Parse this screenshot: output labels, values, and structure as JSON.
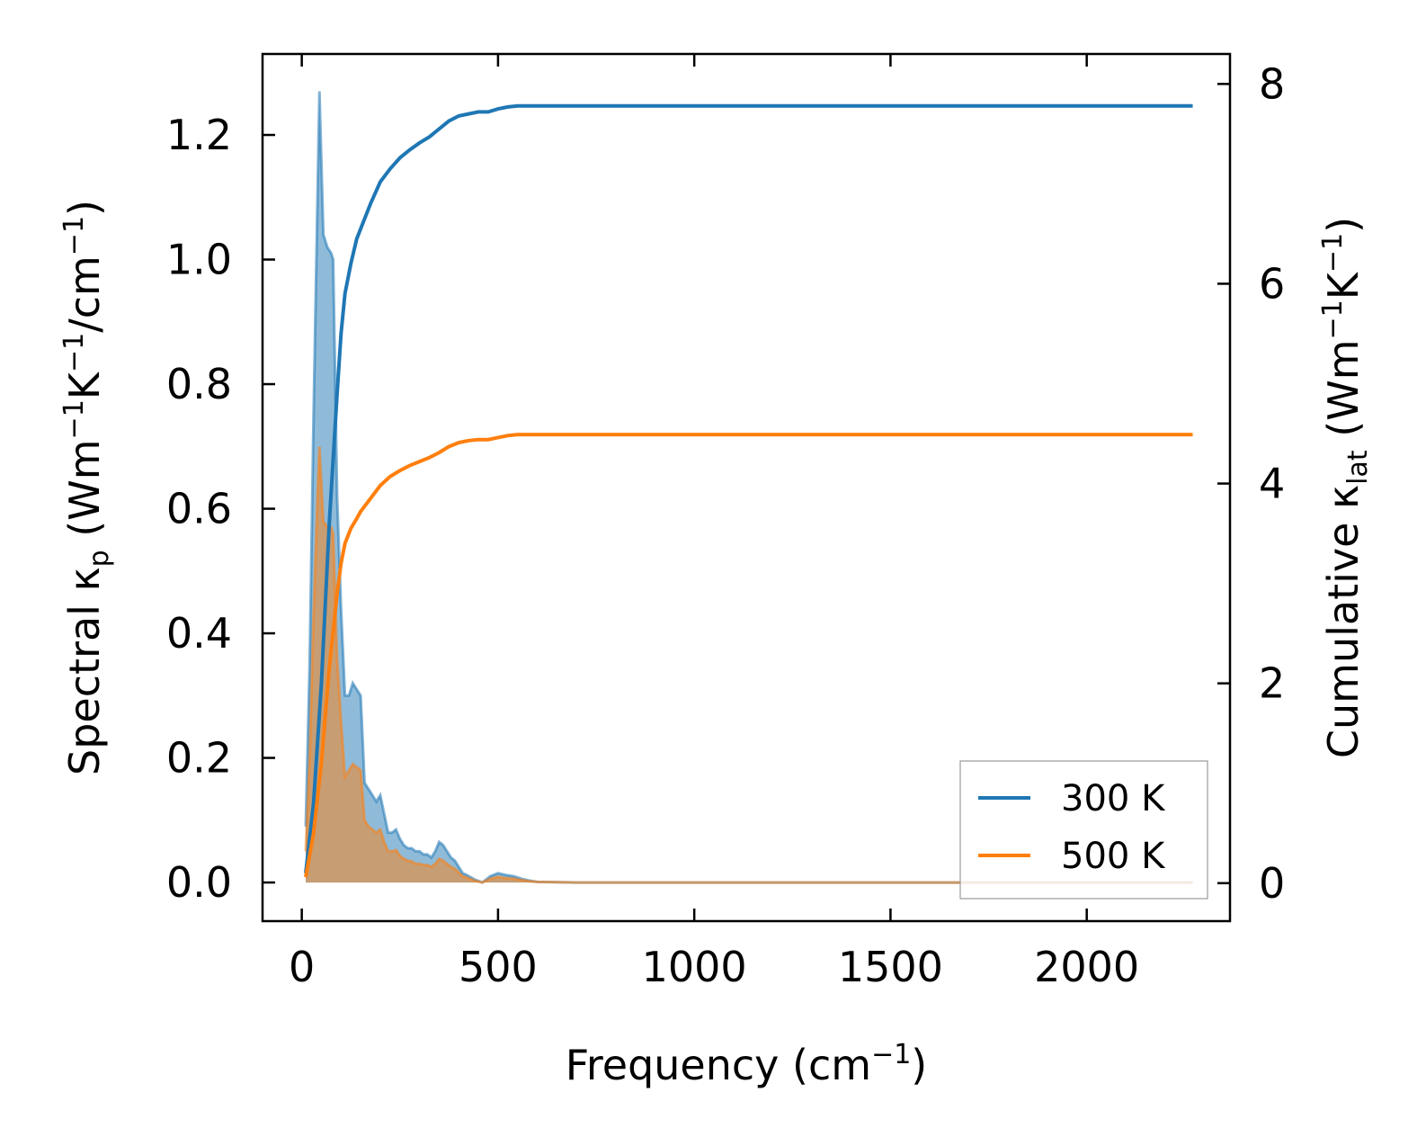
{
  "chart_data": {
    "type": "line",
    "x_label": "Frequency (cm",
    "x_label_sup": "−1",
    "x_label_end": ")",
    "y_left_label": {
      "parts": [
        "Spectral κ",
        "p",
        " (Wm",
        "−1",
        "K",
        "−1",
        "/cm",
        "−1",
        ")"
      ],
      "styles": [
        "n",
        "sub",
        "n",
        "sup",
        "n",
        "sup",
        "n",
        "sup",
        "n"
      ]
    },
    "y_right_label": {
      "parts": [
        "Cumulative κ",
        "lat",
        " (Wm",
        "−1",
        "K",
        "−1",
        ")"
      ],
      "styles": [
        "n",
        "sub",
        "n",
        "sup",
        "n",
        "sup",
        "n"
      ]
    },
    "x_range": [
      -100,
      2365
    ],
    "x_ticks": [
      0,
      500,
      1000,
      1500,
      2000
    ],
    "x_tick_labels": [
      "0",
      "500",
      "1000",
      "1500",
      "2000"
    ],
    "y_left_range": [
      -0.062,
      1.33
    ],
    "y_left_ticks": [
      0.0,
      0.2,
      0.4,
      0.6,
      0.8,
      1.0,
      1.2
    ],
    "y_left_tick_labels": [
      "0.0",
      "0.2",
      "0.4",
      "0.6",
      "0.8",
      "1.0",
      "1.2"
    ],
    "y_right_range": [
      -0.38,
      8.3
    ],
    "y_right_ticks": [
      0,
      2,
      4,
      6,
      8
    ],
    "y_right_tick_labels": [
      "0",
      "2",
      "4",
      "6",
      "8"
    ],
    "legend": {
      "position": "lower-right",
      "entries": [
        {
          "label": "300 K",
          "color": "#1f77b4"
        },
        {
          "label": "500 K",
          "color": "#ff7f0e"
        }
      ]
    },
    "series": [
      {
        "name": "300 K",
        "color": "#1f77b4",
        "spectral_x": [
          10,
          20,
          30,
          40,
          45,
          55,
          65,
          75,
          80,
          90,
          100,
          110,
          120,
          130,
          140,
          150,
          160,
          170,
          180,
          190,
          200,
          210,
          220,
          230,
          240,
          250,
          260,
          270,
          280,
          290,
          300,
          310,
          320,
          330,
          340,
          350,
          360,
          370,
          380,
          390,
          400,
          410,
          420,
          440,
          460,
          480,
          500,
          520,
          540,
          560,
          580,
          600,
          700,
          800,
          1000,
          1500,
          2000,
          2270
        ],
        "spectral_y": [
          0.09,
          0.35,
          0.75,
          1.1,
          1.27,
          1.04,
          1.02,
          1.01,
          1.0,
          0.62,
          0.44,
          0.3,
          0.3,
          0.32,
          0.31,
          0.3,
          0.16,
          0.15,
          0.14,
          0.13,
          0.14,
          0.11,
          0.08,
          0.08,
          0.085,
          0.07,
          0.06,
          0.055,
          0.055,
          0.05,
          0.05,
          0.045,
          0.045,
          0.04,
          0.05,
          0.065,
          0.06,
          0.05,
          0.04,
          0.035,
          0.025,
          0.015,
          0.012,
          0.005,
          0.0,
          0.01,
          0.015,
          0.012,
          0.01,
          0.006,
          0.003,
          0.001,
          0.0,
          0.0,
          0.0,
          0.0,
          0.0,
          0.0
        ],
        "cumulative_x": [
          10,
          30,
          50,
          70,
          90,
          100,
          110,
          125,
          140,
          150,
          175,
          200,
          225,
          250,
          275,
          300,
          325,
          350,
          375,
          400,
          425,
          450,
          475,
          500,
          525,
          550,
          600,
          700,
          1000,
          1500,
          2000,
          2270
        ],
        "cumulative_y": [
          0.1,
          0.8,
          2.0,
          3.6,
          4.9,
          5.5,
          5.9,
          6.2,
          6.45,
          6.55,
          6.8,
          7.02,
          7.15,
          7.26,
          7.34,
          7.41,
          7.47,
          7.55,
          7.63,
          7.68,
          7.7,
          7.72,
          7.72,
          7.75,
          7.77,
          7.78,
          7.78,
          7.78,
          7.78,
          7.78,
          7.78,
          7.78
        ]
      },
      {
        "name": "500 K",
        "color": "#ff7f0e",
        "spectral_x": [
          10,
          20,
          30,
          40,
          45,
          55,
          65,
          75,
          80,
          90,
          100,
          110,
          120,
          130,
          140,
          150,
          160,
          170,
          180,
          190,
          200,
          210,
          220,
          230,
          240,
          250,
          260,
          270,
          280,
          290,
          300,
          310,
          320,
          330,
          340,
          350,
          360,
          370,
          380,
          390,
          400,
          410,
          420,
          440,
          460,
          480,
          500,
          520,
          540,
          560,
          580,
          600,
          700,
          800,
          1000,
          1500,
          2000,
          2270
        ],
        "spectral_y": [
          0.05,
          0.2,
          0.43,
          0.62,
          0.7,
          0.58,
          0.57,
          0.57,
          0.56,
          0.36,
          0.26,
          0.17,
          0.18,
          0.19,
          0.185,
          0.18,
          0.1,
          0.09,
          0.085,
          0.08,
          0.085,
          0.065,
          0.05,
          0.05,
          0.052,
          0.043,
          0.038,
          0.035,
          0.034,
          0.03,
          0.03,
          0.028,
          0.028,
          0.025,
          0.03,
          0.038,
          0.035,
          0.03,
          0.025,
          0.022,
          0.016,
          0.01,
          0.008,
          0.003,
          0.0,
          0.006,
          0.009,
          0.007,
          0.006,
          0.004,
          0.002,
          0.001,
          0.0,
          0.0,
          0.0,
          0.0,
          0.0,
          0.0
        ],
        "cumulative_x": [
          10,
          30,
          50,
          70,
          90,
          100,
          110,
          125,
          140,
          150,
          175,
          200,
          225,
          250,
          275,
          300,
          325,
          350,
          375,
          400,
          425,
          450,
          475,
          500,
          525,
          550,
          600,
          700,
          1000,
          1500,
          2000,
          2270
        ],
        "cumulative_y": [
          0.06,
          0.5,
          1.2,
          2.15,
          2.9,
          3.2,
          3.4,
          3.55,
          3.65,
          3.72,
          3.85,
          3.98,
          4.07,
          4.13,
          4.18,
          4.22,
          4.26,
          4.31,
          4.37,
          4.41,
          4.43,
          4.44,
          4.44,
          4.46,
          4.48,
          4.49,
          4.49,
          4.49,
          4.49,
          4.49,
          4.49,
          4.49
        ]
      }
    ]
  }
}
